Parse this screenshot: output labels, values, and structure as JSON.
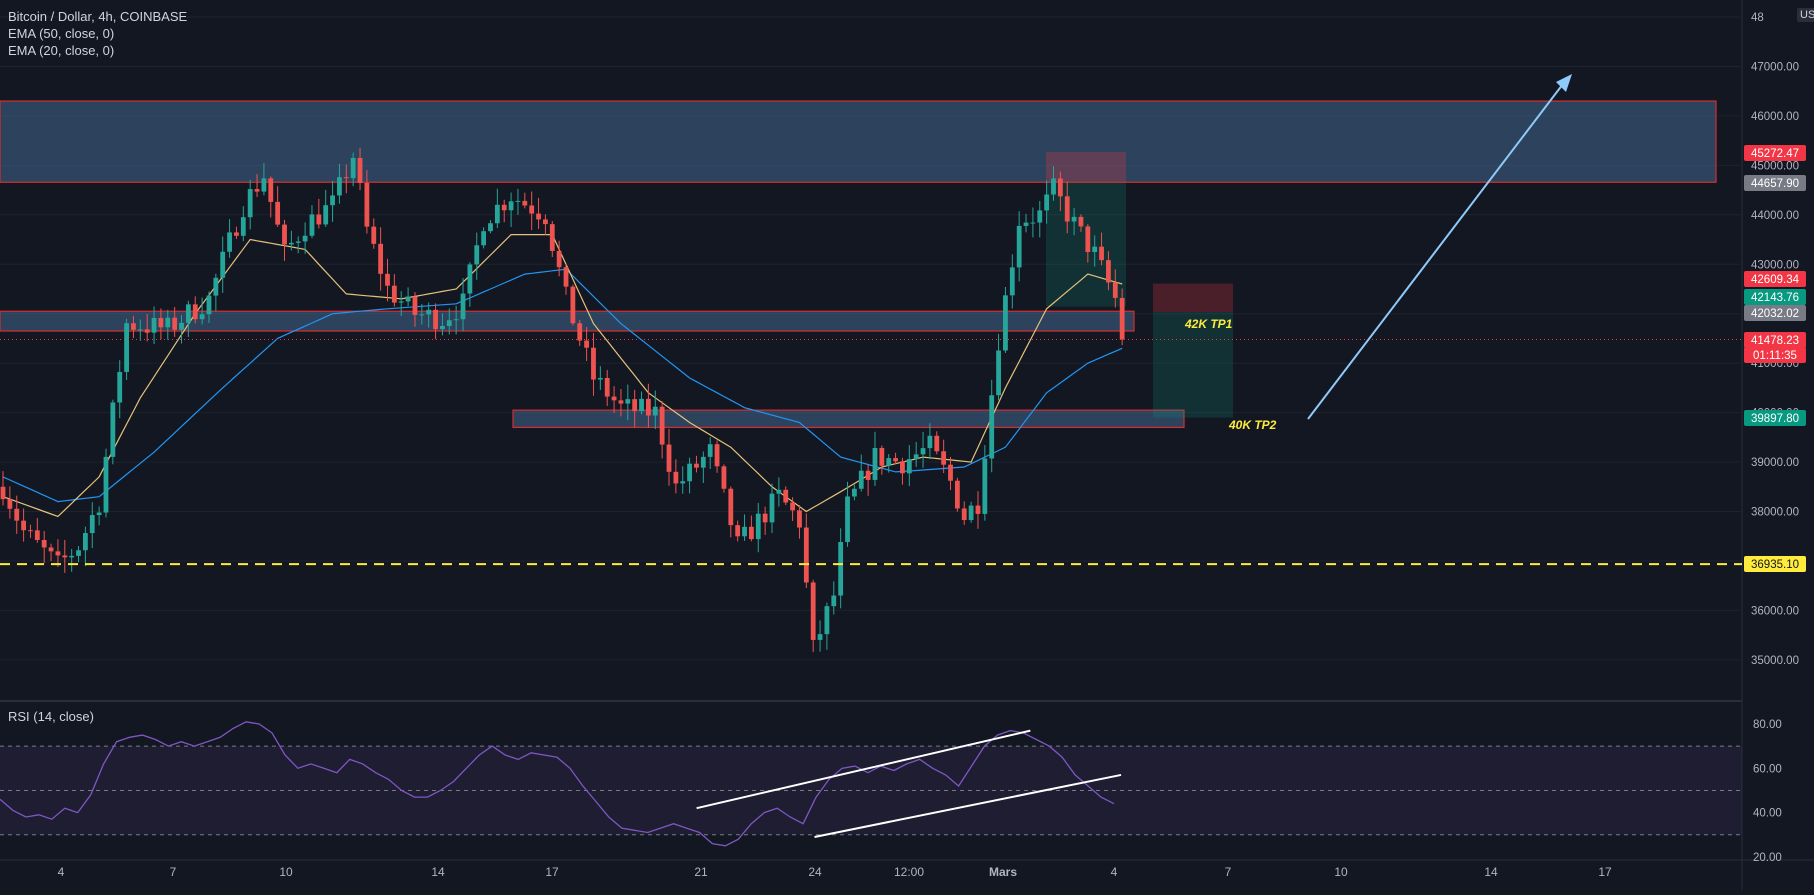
{
  "legend": {
    "symbol": "Bitcoin / Dollar, 4h, COINBASE",
    "ema50": "EMA (50, close, 0)",
    "ema20": "EMA (20, close, 0)",
    "rsi": "RSI (14, close)"
  },
  "currency_label": "USD",
  "colors": {
    "background": "#131722",
    "up": "#26a69a",
    "down": "#ef5350",
    "ema50": "#2196f3",
    "ema20": "#e6c27a",
    "zone_fill": "#4f7fb0",
    "zone_border": "#d32f2f",
    "rsi_line": "#7e57c2",
    "support_line": "#ffeb3b",
    "trend_arrow": "#90caf9"
  },
  "chart_data": [
    {
      "type": "candlestick",
      "title": "Bitcoin / Dollar, 4h, COINBASE",
      "ylim": [
        34300,
        48000
      ],
      "y_ticks": [
        "35000.00",
        "36000.00",
        "37000.00",
        "38000.00",
        "39000.00",
        "40000.00",
        "41000.00",
        "42000.00",
        "43000.00",
        "44000.00",
        "45000.00",
        "46000.00",
        "47000.00",
        "48"
      ],
      "x_tick_labels": [
        "4",
        "7",
        "10",
        "14",
        "17",
        "21",
        "24",
        "12:00",
        "Mars",
        "4",
        "7",
        "10",
        "14",
        "17"
      ],
      "price_labels": [
        {
          "text": "45272.47",
          "color": "#f23645"
        },
        {
          "text": "44657.90",
          "color": "#787b86"
        },
        {
          "text": "42609.34",
          "color": "#f23645"
        },
        {
          "text": "42143.76",
          "color": "#089981"
        },
        {
          "text": "42032.02",
          "color": "#787b86"
        },
        {
          "text": "41478.23",
          "color": "#f23645"
        },
        {
          "text": "01:11:35",
          "color": "#f23645"
        },
        {
          "text": "39897.80",
          "color": "#089981"
        },
        {
          "text": "36935.10",
          "color": "#ffeb3b"
        }
      ],
      "zones": [
        {
          "name": "resistance",
          "low": 44657.9,
          "high": 46300
        },
        {
          "name": "middle",
          "low": 41650,
          "high": 42050
        },
        {
          "name": "lower",
          "low": 39700,
          "high": 40050
        }
      ],
      "support_level": 36935.1,
      "current_price": 41478.23,
      "annotations": [
        "42K TP1",
        "40K TP2"
      ],
      "trade_boxes": [
        {
          "kind": "stop",
          "low": 44657.9,
          "high": 45272.47
        },
        {
          "kind": "target",
          "low": 42143.76,
          "high": 44657.9
        },
        {
          "kind": "stop",
          "low": 42032.02,
          "high": 42609.34
        },
        {
          "kind": "target",
          "low": 39897.8,
          "high": 42032.02
        }
      ],
      "price_waypoints": [
        {
          "bar": 0,
          "price": 38500
        },
        {
          "bar": 3,
          "price": 37600
        },
        {
          "bar": 8,
          "price": 36900
        },
        {
          "bar": 11,
          "price": 37300
        },
        {
          "bar": 14,
          "price": 38200
        },
        {
          "bar": 18,
          "price": 41800
        },
        {
          "bar": 24,
          "price": 41700
        },
        {
          "bar": 30,
          "price": 42300
        },
        {
          "bar": 35,
          "price": 44200
        },
        {
          "bar": 38,
          "price": 44800
        },
        {
          "bar": 41,
          "price": 43200
        },
        {
          "bar": 44,
          "price": 43800
        },
        {
          "bar": 48,
          "price": 44200
        },
        {
          "bar": 51,
          "price": 45200
        },
        {
          "bar": 53,
          "price": 43700
        },
        {
          "bar": 56,
          "price": 42500
        },
        {
          "bar": 60,
          "price": 42000
        },
        {
          "bar": 64,
          "price": 41900
        },
        {
          "bar": 67,
          "price": 42200
        },
        {
          "bar": 70,
          "price": 43900
        },
        {
          "bar": 74,
          "price": 44400
        },
        {
          "bar": 79,
          "price": 44000
        },
        {
          "bar": 82,
          "price": 42300
        },
        {
          "bar": 86,
          "price": 40700
        },
        {
          "bar": 90,
          "price": 40100
        },
        {
          "bar": 95,
          "price": 40000
        },
        {
          "bar": 98,
          "price": 38500
        },
        {
          "bar": 103,
          "price": 39200
        },
        {
          "bar": 107,
          "price": 37300
        },
        {
          "bar": 110,
          "price": 37800
        },
        {
          "bar": 113,
          "price": 38300
        },
        {
          "bar": 116,
          "price": 37800
        },
        {
          "bar": 118,
          "price": 35200
        },
        {
          "bar": 121,
          "price": 36300
        },
        {
          "bar": 123,
          "price": 38100
        },
        {
          "bar": 127,
          "price": 39100
        },
        {
          "bar": 131,
          "price": 39000
        },
        {
          "bar": 135,
          "price": 39300
        },
        {
          "bar": 138,
          "price": 38600
        },
        {
          "bar": 140,
          "price": 37900
        },
        {
          "bar": 142,
          "price": 38200
        },
        {
          "bar": 145,
          "price": 41500
        },
        {
          "bar": 148,
          "price": 43900
        },
        {
          "bar": 151,
          "price": 44000
        },
        {
          "bar": 153,
          "price": 44500
        },
        {
          "bar": 156,
          "price": 43800
        },
        {
          "bar": 159,
          "price": 43200
        },
        {
          "bar": 162,
          "price": 42300
        },
        {
          "bar": 163,
          "price": 41478
        }
      ],
      "ema20": [
        {
          "bar": 0,
          "price": 38300
        },
        {
          "bar": 8,
          "price": 37900
        },
        {
          "bar": 14,
          "price": 38700
        },
        {
          "bar": 20,
          "price": 40300
        },
        {
          "bar": 28,
          "price": 42000
        },
        {
          "bar": 36,
          "price": 43500
        },
        {
          "bar": 44,
          "price": 43300
        },
        {
          "bar": 50,
          "price": 42400
        },
        {
          "bar": 58,
          "price": 42300
        },
        {
          "bar": 66,
          "price": 42500
        },
        {
          "bar": 74,
          "price": 43600
        },
        {
          "bar": 80,
          "price": 43600
        },
        {
          "bar": 86,
          "price": 41800
        },
        {
          "bar": 94,
          "price": 40400
        },
        {
          "bar": 100,
          "price": 39800
        },
        {
          "bar": 106,
          "price": 39300
        },
        {
          "bar": 112,
          "price": 38500
        },
        {
          "bar": 117,
          "price": 38000
        },
        {
          "bar": 122,
          "price": 38400
        },
        {
          "bar": 128,
          "price": 38900
        },
        {
          "bar": 134,
          "price": 39100
        },
        {
          "bar": 141,
          "price": 39000
        },
        {
          "bar": 146,
          "price": 40500
        },
        {
          "bar": 152,
          "price": 42100
        },
        {
          "bar": 158,
          "price": 42800
        },
        {
          "bar": 163,
          "price": 42600
        }
      ],
      "ema50": [
        {
          "bar": 0,
          "price": 38700
        },
        {
          "bar": 8,
          "price": 38200
        },
        {
          "bar": 14,
          "price": 38300
        },
        {
          "bar": 22,
          "price": 39200
        },
        {
          "bar": 32,
          "price": 40500
        },
        {
          "bar": 40,
          "price": 41500
        },
        {
          "bar": 48,
          "price": 42000
        },
        {
          "bar": 56,
          "price": 42100
        },
        {
          "bar": 66,
          "price": 42200
        },
        {
          "bar": 76,
          "price": 42800
        },
        {
          "bar": 82,
          "price": 42900
        },
        {
          "bar": 90,
          "price": 41800
        },
        {
          "bar": 100,
          "price": 40700
        },
        {
          "bar": 108,
          "price": 40100
        },
        {
          "bar": 116,
          "price": 39800
        },
        {
          "bar": 122,
          "price": 39100
        },
        {
          "bar": 130,
          "price": 38800
        },
        {
          "bar": 140,
          "price": 38900
        },
        {
          "bar": 146,
          "price": 39300
        },
        {
          "bar": 152,
          "price": 40400
        },
        {
          "bar": 158,
          "price": 41000
        },
        {
          "bar": 163,
          "price": 41300
        }
      ]
    },
    {
      "type": "line",
      "title": "RSI (14, close)",
      "ylim": [
        18,
        87
      ],
      "y_ticks": [
        "20.00",
        "40.00",
        "60.00",
        "80.00"
      ],
      "levels": [
        30,
        50,
        70
      ],
      "series": [
        {
          "values": [
            46,
            41,
            38,
            39,
            37,
            42,
            40,
            48,
            62,
            72,
            74,
            75,
            73,
            70,
            72,
            70,
            72,
            74,
            78,
            81,
            80,
            76,
            66,
            60,
            62,
            60,
            58,
            64,
            62,
            58,
            55,
            50,
            47,
            47,
            50,
            54,
            60,
            66,
            70,
            66,
            64,
            67,
            66,
            65,
            60,
            52,
            45,
            38,
            33,
            32,
            31,
            33,
            35,
            33,
            31,
            26,
            25,
            28,
            35,
            40,
            42,
            38,
            35,
            47,
            55,
            60,
            61,
            58,
            61,
            59,
            62,
            64,
            60,
            57,
            52,
            61,
            70,
            75,
            77,
            76,
            73,
            70,
            65,
            57,
            52,
            47,
            44
          ]
        }
      ],
      "trendlines": [
        {
          "from": [
            0.384,
            42
          ],
          "to": [
            0.568,
            77
          ]
        },
        {
          "from": [
            0.449,
            29
          ],
          "to": [
            0.618,
            57
          ]
        }
      ]
    }
  ]
}
